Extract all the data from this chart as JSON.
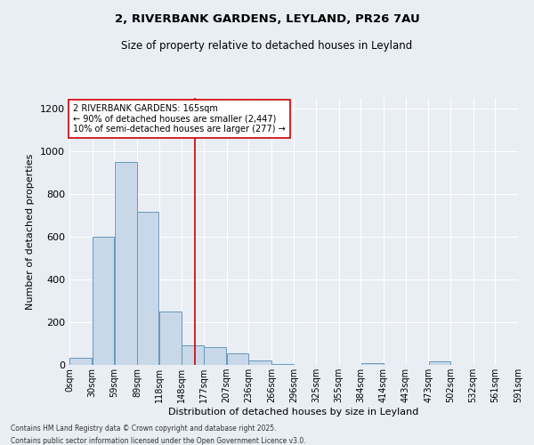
{
  "title1": "2, RIVERBANK GARDENS, LEYLAND, PR26 7AU",
  "title2": "Size of property relative to detached houses in Leyland",
  "xlabel": "Distribution of detached houses by size in Leyland",
  "ylabel": "Number of detached properties",
  "bin_labels": [
    "0sqm",
    "30sqm",
    "59sqm",
    "89sqm",
    "118sqm",
    "148sqm",
    "177sqm",
    "207sqm",
    "236sqm",
    "266sqm",
    "296sqm",
    "325sqm",
    "355sqm",
    "384sqm",
    "414sqm",
    "443sqm",
    "473sqm",
    "502sqm",
    "532sqm",
    "561sqm",
    "591sqm"
  ],
  "bin_edges": [
    0,
    30,
    59,
    89,
    118,
    148,
    177,
    207,
    236,
    266,
    296,
    325,
    355,
    384,
    414,
    443,
    473,
    502,
    532,
    561,
    591
  ],
  "bar_heights": [
    35,
    598,
    950,
    715,
    248,
    90,
    85,
    55,
    22,
    5,
    0,
    0,
    0,
    10,
    0,
    0,
    18,
    0,
    0,
    0
  ],
  "bar_color": "#c8d8e8",
  "bar_edge_color": "#6699bb",
  "vline_x": 165,
  "vline_color": "#cc0000",
  "annotation_text": "2 RIVERBANK GARDENS: 165sqm\n← 90% of detached houses are smaller (2,447)\n10% of semi-detached houses are larger (277) →",
  "annotation_box_color": "white",
  "annotation_box_edge": "#cc0000",
  "ylim": [
    0,
    1250
  ],
  "yticks": [
    0,
    200,
    400,
    600,
    800,
    1000,
    1200
  ],
  "background_color": "#e8eef4",
  "grid_color": "white",
  "footer1": "Contains HM Land Registry data © Crown copyright and database right 2025.",
  "footer2": "Contains public sector information licensed under the Open Government Licence v3.0."
}
